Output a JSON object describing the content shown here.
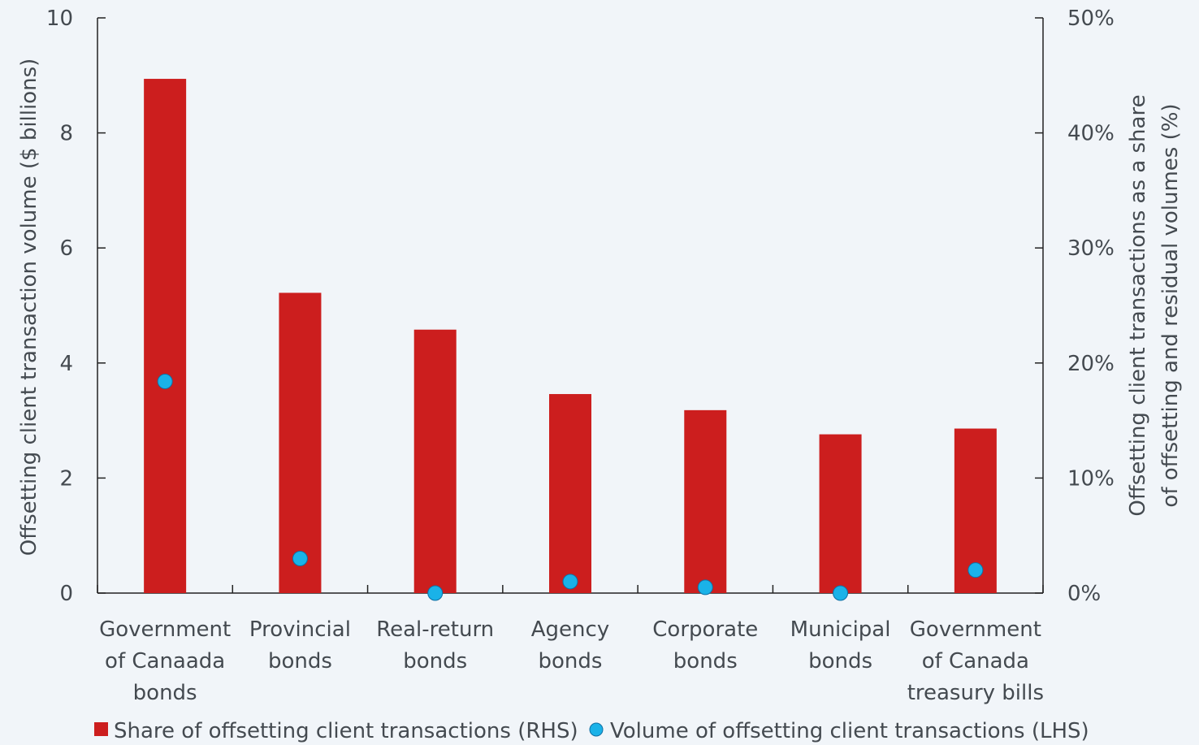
{
  "chart_data": {
    "type": "bar",
    "categories": [
      [
        "Government",
        "of Canaada",
        "bonds"
      ],
      [
        "Provincial",
        "bonds"
      ],
      [
        "Real-return",
        "bonds"
      ],
      [
        "Agency",
        "bonds"
      ],
      [
        "Corporate",
        "bonds"
      ],
      [
        "Municipal",
        "bonds"
      ],
      [
        "Government",
        "of Canada",
        "treasury bills"
      ]
    ],
    "series": [
      {
        "name": "Share of offsetting client transactions (RHS)",
        "type": "bar",
        "axis": "right",
        "color": "#cc1e1e",
        "values": [
          44.7,
          26.1,
          22.9,
          17.3,
          15.9,
          13.8,
          14.3
        ]
      },
      {
        "name": "Volume of offsetting client transactions (LHS)",
        "type": "scatter",
        "axis": "left",
        "color": "#1ab2e8",
        "values": [
          3.68,
          0.6,
          0.0,
          0.2,
          0.1,
          0.0,
          0.4
        ]
      }
    ],
    "y_left": {
      "label": "Offsetting client transaction volume ($ billions)",
      "lim": [
        0,
        10
      ],
      "ticks": [
        "0",
        "2",
        "4",
        "6",
        "8",
        "10"
      ]
    },
    "y_right": {
      "label_lines": [
        "Offsetting client transactions as a share",
        "of offsetting and residual volumes (%)"
      ],
      "lim": [
        0,
        50
      ],
      "ticks": [
        "0%",
        "10%",
        "20%",
        "30%",
        "40%",
        "50%"
      ]
    },
    "grid": false,
    "legend_position": "bottom"
  }
}
